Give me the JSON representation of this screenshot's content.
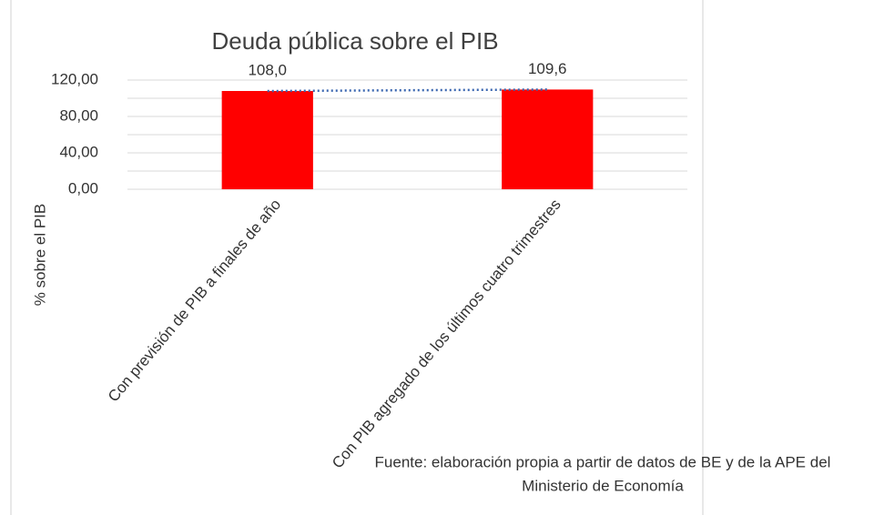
{
  "chart_data": {
    "type": "bar",
    "title": "Deuda pública sobre el PIB",
    "y_label": "% sobre el PIB",
    "categories": [
      "Con previsión de PIB a finales de año",
      "Con PIB agregado de los últimos cuatro trimestres"
    ],
    "values": [
      108.0,
      109.6
    ],
    "value_labels": [
      "108,0",
      "109,6"
    ],
    "color": "#ff0000",
    "ylim": [
      0,
      120
    ],
    "yticks": [
      {
        "value": 0,
        "label": "0,00"
      },
      {
        "value": 40,
        "label": "40,00"
      },
      {
        "value": 80,
        "label": "80,00"
      },
      {
        "value": 120,
        "label": "120,00"
      }
    ],
    "minor_yticks": [
      20,
      60,
      100
    ],
    "grid": true,
    "trendline": {
      "color": "#3a66b0",
      "style": "dotted"
    },
    "source": [
      "Fuente: elaboración propia a partir de datos de BE y de la APE del",
      "Ministerio de Economía"
    ]
  }
}
